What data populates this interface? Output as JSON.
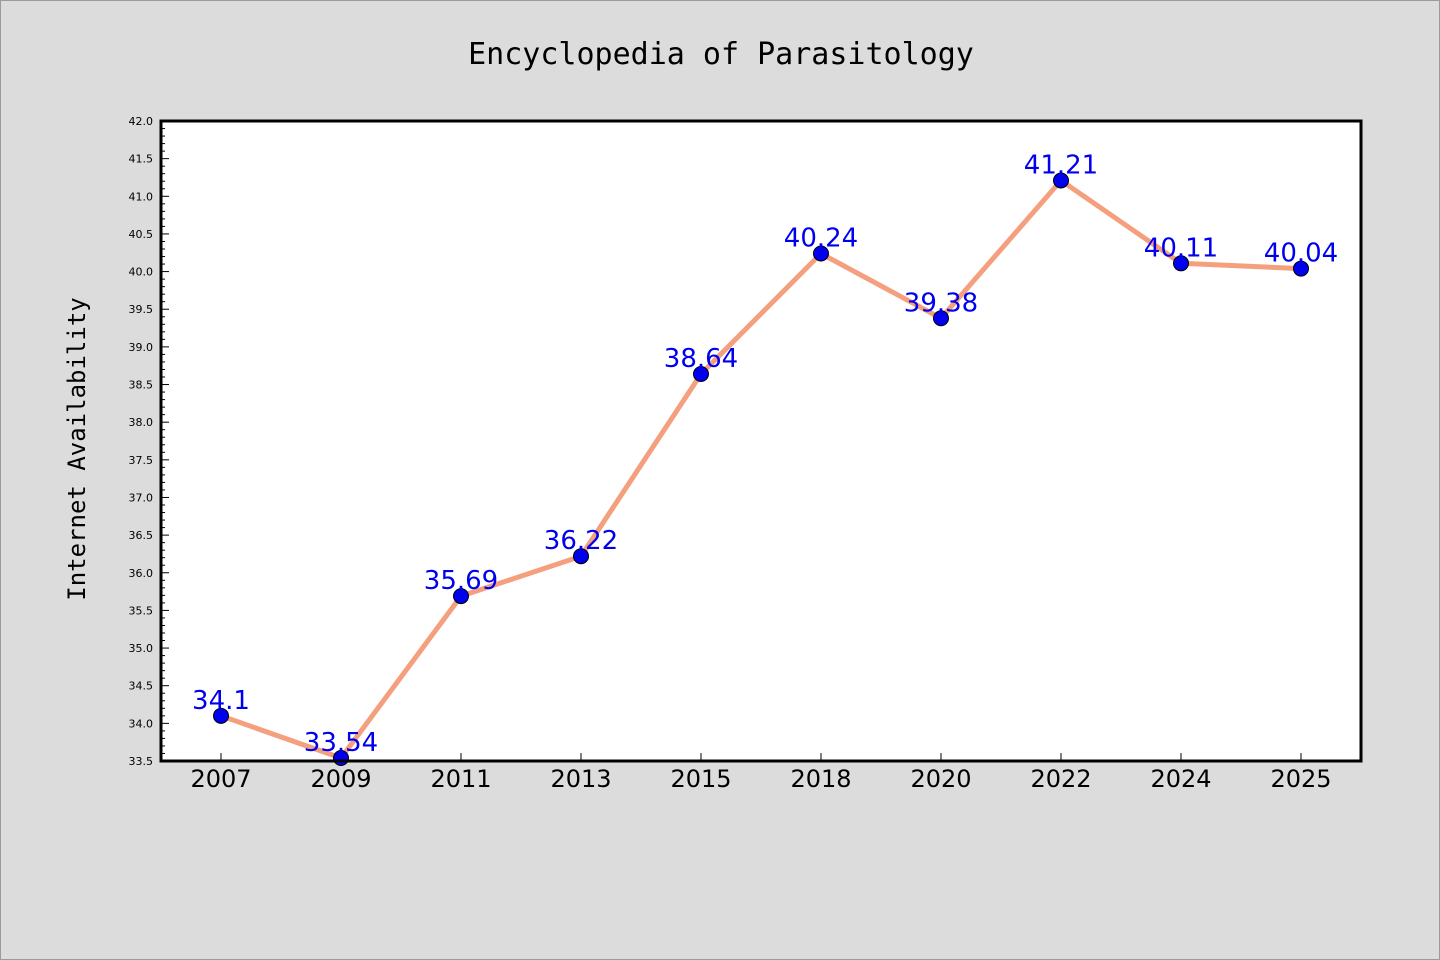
{
  "chart_data": {
    "type": "line",
    "title": "Encyclopedia of Parasitology",
    "xlabel": "",
    "ylabel": "Internet Availability",
    "categories": [
      "2007",
      "2009",
      "2011",
      "2013",
      "2015",
      "2018",
      "2020",
      "2022",
      "2024",
      "2025"
    ],
    "series": [
      {
        "values": [
          34.1,
          33.54,
          35.69,
          36.22,
          38.64,
          40.24,
          39.38,
          41.21,
          40.11,
          40.04
        ],
        "labels": [
          "34.1",
          "33.54",
          "35.69",
          "36.22",
          "38.64",
          "40.24",
          "39.38",
          "41.21",
          "40.11",
          "40.04"
        ]
      }
    ],
    "ylim": [
      33.5,
      42.0
    ],
    "yticks": [
      "33.5",
      "34.0",
      "34.5",
      "35.0",
      "35.5",
      "36.0",
      "36.5",
      "37.0",
      "37.5",
      "38.0",
      "38.5",
      "39.0",
      "39.5",
      "40.0",
      "40.5",
      "41.0",
      "41.5",
      "42.0"
    ],
    "grid": false,
    "colors": {
      "line": "#f4a07e",
      "marker": "#0000ee",
      "label": "#0000ee",
      "plot_background": "#ffffff",
      "figure_background": "#dcdcdc"
    }
  }
}
